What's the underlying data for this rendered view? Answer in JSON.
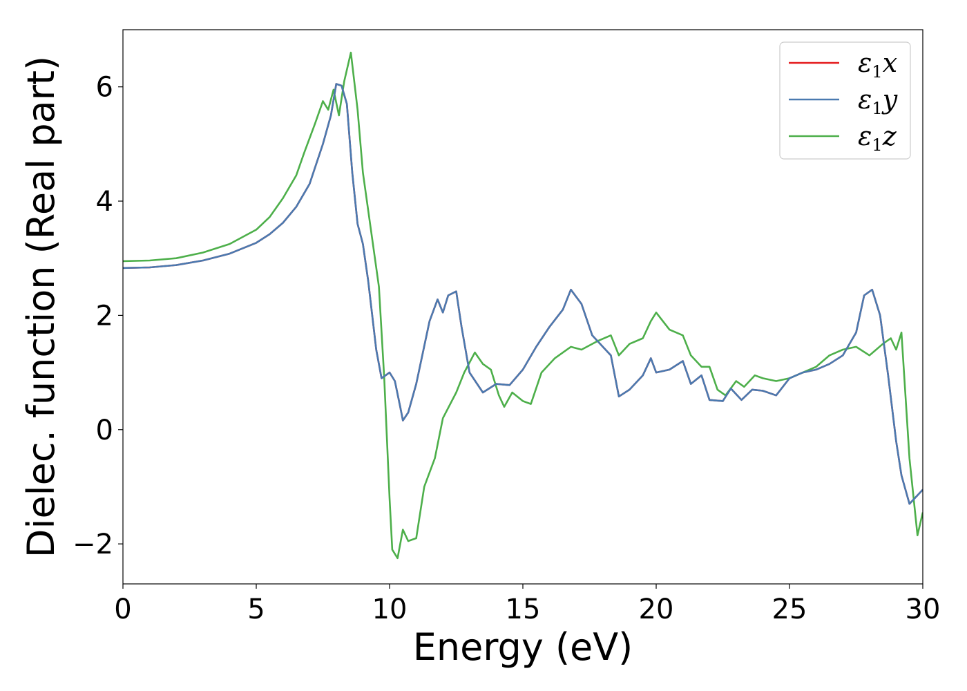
{
  "chart_data": {
    "type": "line",
    "title": "",
    "xlabel": "Energy (eV)",
    "ylabel": "Dielec. function (Real part)",
    "xlim": [
      0,
      30
    ],
    "ylim": [
      -2.7,
      7.0
    ],
    "xticks": [
      0,
      5,
      10,
      15,
      20,
      25,
      30
    ],
    "xtick_labels": [
      "0",
      "5",
      "10",
      "15",
      "20",
      "25",
      "30"
    ],
    "yticks": [
      -2,
      0,
      2,
      4,
      6
    ],
    "ytick_labels": [
      "−2",
      "0",
      "2",
      "4",
      "6"
    ],
    "grid": false,
    "legend_position": "top-right",
    "series": [
      {
        "name": "ε1x",
        "legend": {
          "base": "ε",
          "sub": "1",
          "var": "x"
        },
        "color": "#e41a1c",
        "points": [
          [
            0,
            2.83
          ],
          [
            1,
            2.84
          ],
          [
            2,
            2.88
          ],
          [
            3,
            2.96
          ],
          [
            4,
            3.08
          ],
          [
            5,
            3.27
          ],
          [
            5.5,
            3.42
          ],
          [
            6,
            3.62
          ],
          [
            6.5,
            3.9
          ],
          [
            7,
            4.3
          ],
          [
            7.5,
            5.0
          ],
          [
            7.8,
            5.5
          ],
          [
            8.0,
            6.05
          ],
          [
            8.2,
            6.02
          ],
          [
            8.4,
            5.7
          ],
          [
            8.6,
            4.5
          ],
          [
            8.8,
            3.6
          ],
          [
            9.0,
            3.25
          ],
          [
            9.2,
            2.6
          ],
          [
            9.5,
            1.4
          ],
          [
            9.7,
            0.9
          ],
          [
            10.0,
            1.0
          ],
          [
            10.2,
            0.85
          ],
          [
            10.4,
            0.4
          ],
          [
            10.5,
            0.16
          ],
          [
            10.7,
            0.3
          ],
          [
            11.0,
            0.8
          ],
          [
            11.5,
            1.9
          ],
          [
            11.8,
            2.28
          ],
          [
            12.0,
            2.05
          ],
          [
            12.2,
            2.35
          ],
          [
            12.5,
            2.42
          ],
          [
            12.7,
            1.8
          ],
          [
            13.0,
            1.0
          ],
          [
            13.5,
            0.65
          ],
          [
            14.0,
            0.8
          ],
          [
            14.5,
            0.78
          ],
          [
            15.0,
            1.05
          ],
          [
            15.5,
            1.45
          ],
          [
            16.0,
            1.8
          ],
          [
            16.5,
            2.1
          ],
          [
            16.8,
            2.45
          ],
          [
            17.2,
            2.2
          ],
          [
            17.6,
            1.65
          ],
          [
            18.0,
            1.45
          ],
          [
            18.3,
            1.3
          ],
          [
            18.6,
            0.58
          ],
          [
            19.0,
            0.7
          ],
          [
            19.5,
            0.95
          ],
          [
            19.8,
            1.25
          ],
          [
            20.0,
            1.0
          ],
          [
            20.5,
            1.05
          ],
          [
            21.0,
            1.2
          ],
          [
            21.3,
            0.8
          ],
          [
            21.7,
            0.95
          ],
          [
            22.0,
            0.52
          ],
          [
            22.5,
            0.5
          ],
          [
            22.8,
            0.72
          ],
          [
            23.2,
            0.52
          ],
          [
            23.6,
            0.7
          ],
          [
            24.0,
            0.68
          ],
          [
            24.5,
            0.6
          ],
          [
            25.0,
            0.9
          ],
          [
            25.5,
            1.0
          ],
          [
            26.0,
            1.05
          ],
          [
            26.5,
            1.15
          ],
          [
            27.0,
            1.3
          ],
          [
            27.5,
            1.7
          ],
          [
            27.8,
            2.35
          ],
          [
            28.1,
            2.45
          ],
          [
            28.4,
            2.0
          ],
          [
            28.7,
            0.95
          ],
          [
            29.0,
            -0.2
          ],
          [
            29.2,
            -0.8
          ],
          [
            29.5,
            -1.3
          ],
          [
            30.0,
            -1.05
          ]
        ]
      },
      {
        "name": "ε1y",
        "legend": {
          "base": "ε",
          "sub": "1",
          "var": "y"
        },
        "color": "#4a7ab0",
        "points": [
          [
            0,
            2.83
          ],
          [
            1,
            2.84
          ],
          [
            2,
            2.88
          ],
          [
            3,
            2.96
          ],
          [
            4,
            3.08
          ],
          [
            5,
            3.27
          ],
          [
            5.5,
            3.42
          ],
          [
            6,
            3.62
          ],
          [
            6.5,
            3.9
          ],
          [
            7,
            4.3
          ],
          [
            7.5,
            5.0
          ],
          [
            7.8,
            5.5
          ],
          [
            8.0,
            6.05
          ],
          [
            8.2,
            6.02
          ],
          [
            8.4,
            5.7
          ],
          [
            8.6,
            4.5
          ],
          [
            8.8,
            3.6
          ],
          [
            9.0,
            3.25
          ],
          [
            9.2,
            2.6
          ],
          [
            9.5,
            1.4
          ],
          [
            9.7,
            0.9
          ],
          [
            10.0,
            1.0
          ],
          [
            10.2,
            0.85
          ],
          [
            10.4,
            0.4
          ],
          [
            10.5,
            0.16
          ],
          [
            10.7,
            0.3
          ],
          [
            11.0,
            0.8
          ],
          [
            11.5,
            1.9
          ],
          [
            11.8,
            2.28
          ],
          [
            12.0,
            2.05
          ],
          [
            12.2,
            2.35
          ],
          [
            12.5,
            2.42
          ],
          [
            12.7,
            1.8
          ],
          [
            13.0,
            1.0
          ],
          [
            13.5,
            0.65
          ],
          [
            14.0,
            0.8
          ],
          [
            14.5,
            0.78
          ],
          [
            15.0,
            1.05
          ],
          [
            15.5,
            1.45
          ],
          [
            16.0,
            1.8
          ],
          [
            16.5,
            2.1
          ],
          [
            16.8,
            2.45
          ],
          [
            17.2,
            2.2
          ],
          [
            17.6,
            1.65
          ],
          [
            18.0,
            1.45
          ],
          [
            18.3,
            1.3
          ],
          [
            18.6,
            0.58
          ],
          [
            19.0,
            0.7
          ],
          [
            19.5,
            0.95
          ],
          [
            19.8,
            1.25
          ],
          [
            20.0,
            1.0
          ],
          [
            20.5,
            1.05
          ],
          [
            21.0,
            1.2
          ],
          [
            21.3,
            0.8
          ],
          [
            21.7,
            0.95
          ],
          [
            22.0,
            0.52
          ],
          [
            22.5,
            0.5
          ],
          [
            22.8,
            0.72
          ],
          [
            23.2,
            0.52
          ],
          [
            23.6,
            0.7
          ],
          [
            24.0,
            0.68
          ],
          [
            24.5,
            0.6
          ],
          [
            25.0,
            0.9
          ],
          [
            25.5,
            1.0
          ],
          [
            26.0,
            1.05
          ],
          [
            26.5,
            1.15
          ],
          [
            27.0,
            1.3
          ],
          [
            27.5,
            1.7
          ],
          [
            27.8,
            2.35
          ],
          [
            28.1,
            2.45
          ],
          [
            28.4,
            2.0
          ],
          [
            28.7,
            0.95
          ],
          [
            29.0,
            -0.2
          ],
          [
            29.2,
            -0.8
          ],
          [
            29.5,
            -1.3
          ],
          [
            30.0,
            -1.05
          ]
        ]
      },
      {
        "name": "ε1z",
        "legend": {
          "base": "ε",
          "sub": "1",
          "var": "z"
        },
        "color": "#4daf4a",
        "points": [
          [
            0,
            2.95
          ],
          [
            1,
            2.96
          ],
          [
            2,
            3.0
          ],
          [
            3,
            3.1
          ],
          [
            4,
            3.25
          ],
          [
            5,
            3.5
          ],
          [
            5.5,
            3.72
          ],
          [
            6,
            4.05
          ],
          [
            6.5,
            4.45
          ],
          [
            6.8,
            4.85
          ],
          [
            7.2,
            5.35
          ],
          [
            7.5,
            5.75
          ],
          [
            7.7,
            5.6
          ],
          [
            7.9,
            5.95
          ],
          [
            8.1,
            5.5
          ],
          [
            8.3,
            6.1
          ],
          [
            8.55,
            6.6
          ],
          [
            8.8,
            5.6
          ],
          [
            9.0,
            4.5
          ],
          [
            9.3,
            3.5
          ],
          [
            9.6,
            2.5
          ],
          [
            9.8,
            0.9
          ],
          [
            10.0,
            -1.2
          ],
          [
            10.1,
            -2.1
          ],
          [
            10.3,
            -2.25
          ],
          [
            10.5,
            -1.75
          ],
          [
            10.7,
            -1.95
          ],
          [
            11.0,
            -1.9
          ],
          [
            11.3,
            -1.0
          ],
          [
            11.7,
            -0.5
          ],
          [
            12.0,
            0.2
          ],
          [
            12.5,
            0.65
          ],
          [
            12.8,
            1.0
          ],
          [
            13.2,
            1.35
          ],
          [
            13.5,
            1.15
          ],
          [
            13.8,
            1.05
          ],
          [
            14.1,
            0.6
          ],
          [
            14.3,
            0.4
          ],
          [
            14.6,
            0.65
          ],
          [
            15.0,
            0.5
          ],
          [
            15.3,
            0.45
          ],
          [
            15.7,
            1.0
          ],
          [
            16.2,
            1.25
          ],
          [
            16.8,
            1.45
          ],
          [
            17.2,
            1.4
          ],
          [
            17.8,
            1.55
          ],
          [
            18.3,
            1.65
          ],
          [
            18.6,
            1.3
          ],
          [
            19.0,
            1.5
          ],
          [
            19.5,
            1.6
          ],
          [
            19.8,
            1.9
          ],
          [
            20.0,
            2.05
          ],
          [
            20.5,
            1.75
          ],
          [
            21.0,
            1.65
          ],
          [
            21.3,
            1.3
          ],
          [
            21.7,
            1.1
          ],
          [
            22.0,
            1.1
          ],
          [
            22.3,
            0.7
          ],
          [
            22.6,
            0.6
          ],
          [
            23.0,
            0.85
          ],
          [
            23.3,
            0.75
          ],
          [
            23.7,
            0.95
          ],
          [
            24.0,
            0.9
          ],
          [
            24.5,
            0.85
          ],
          [
            25.0,
            0.9
          ],
          [
            25.5,
            1.0
          ],
          [
            26.0,
            1.1
          ],
          [
            26.5,
            1.3
          ],
          [
            27.0,
            1.4
          ],
          [
            27.5,
            1.45
          ],
          [
            28.0,
            1.3
          ],
          [
            28.5,
            1.5
          ],
          [
            28.8,
            1.6
          ],
          [
            29.0,
            1.4
          ],
          [
            29.2,
            1.7
          ],
          [
            29.5,
            -0.5
          ],
          [
            29.8,
            -1.85
          ],
          [
            30.0,
            -1.45
          ]
        ]
      }
    ]
  }
}
